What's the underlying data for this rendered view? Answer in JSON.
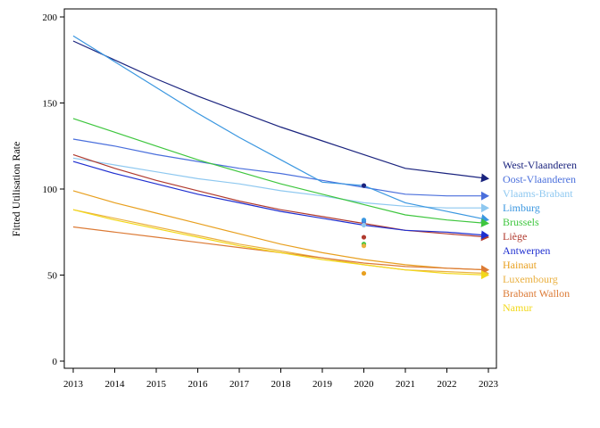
{
  "chart_data": {
    "type": "line",
    "title": "",
    "xlabel": "",
    "ylabel": "Fitted Utilisation Rate",
    "xlim": [
      2013,
      2023
    ],
    "ylim": [
      0,
      200
    ],
    "x_ticks": [
      "2013",
      "2014",
      "2015",
      "2016",
      "2017",
      "2018",
      "2019",
      "2020",
      "2021",
      "2022",
      "2023"
    ],
    "y_ticks": [
      "0",
      "50",
      "100",
      "150",
      "200"
    ],
    "grid": false,
    "legend_placement": "right",
    "series": [
      {
        "name": "West-Vlaanderen",
        "color": "#1a237e",
        "x": [
          2013,
          2014,
          2015,
          2016,
          2017,
          2018,
          2019,
          2020,
          2021,
          2022,
          2023
        ],
        "values": [
          186,
          175,
          164,
          154,
          145,
          136,
          128,
          120,
          112,
          109,
          106
        ],
        "point_2020": 102
      },
      {
        "name": "Oost-Vlaanderen",
        "color": "#4a6fdc",
        "x": [
          2013,
          2014,
          2015,
          2016,
          2017,
          2018,
          2019,
          2020,
          2021,
          2022,
          2023
        ],
        "values": [
          129,
          125,
          120,
          116,
          112,
          109,
          105,
          101,
          97,
          96,
          96
        ],
        "point_2020": 81
      },
      {
        "name": "Vlaams-Brabant",
        "color": "#8ec8f0",
        "x": [
          2013,
          2014,
          2015,
          2016,
          2017,
          2018,
          2019,
          2020,
          2021,
          2022,
          2023
        ],
        "values": [
          118,
          114,
          110,
          106,
          103,
          99,
          96,
          92,
          90,
          89,
          89
        ],
        "point_2020": 79
      },
      {
        "name": "Limburg",
        "color": "#3b97e0",
        "x": [
          2013,
          2014,
          2015,
          2016,
          2017,
          2018,
          2019,
          2020,
          2021,
          2022,
          2023
        ],
        "values": [
          189,
          174,
          159,
          144,
          130,
          117,
          104,
          102,
          92,
          87,
          82
        ],
        "point_2020": 82
      },
      {
        "name": "Brussels",
        "color": "#3ec63e",
        "x": [
          2013,
          2014,
          2015,
          2016,
          2017,
          2018,
          2019,
          2020,
          2021,
          2022,
          2023
        ],
        "values": [
          141,
          133,
          125,
          117,
          110,
          103,
          97,
          91,
          85,
          82,
          80
        ],
        "point_2020": 68
      },
      {
        "name": "Liège",
        "color": "#b03a2e",
        "x": [
          2013,
          2014,
          2015,
          2016,
          2017,
          2018,
          2019,
          2020,
          2021,
          2022,
          2023
        ],
        "values": [
          120,
          112,
          105,
          99,
          93,
          88,
          84,
          80,
          76,
          74,
          72
        ],
        "point_2020": 72
      },
      {
        "name": "Antwerpen",
        "color": "#1f2fd0",
        "x": [
          2013,
          2014,
          2015,
          2016,
          2017,
          2018,
          2019,
          2020,
          2021,
          2022,
          2023
        ],
        "values": [
          116,
          109,
          103,
          97,
          92,
          87,
          83,
          79,
          76,
          75,
          73
        ]
      },
      {
        "name": "Hainaut",
        "color": "#e8a020",
        "x": [
          2013,
          2014,
          2015,
          2016,
          2017,
          2018,
          2019,
          2020,
          2021,
          2022,
          2023
        ],
        "values": [
          99,
          92,
          86,
          80,
          74,
          68,
          63,
          59,
          56,
          54,
          53
        ],
        "point_2020": 51
      },
      {
        "name": "Luxembourg",
        "color": "#eab040",
        "x": [
          2013,
          2014,
          2015,
          2016,
          2017,
          2018,
          2019,
          2020,
          2021,
          2022,
          2023
        ],
        "values": [
          88,
          83,
          78,
          73,
          68,
          64,
          60,
          56,
          53,
          52,
          51
        ],
        "point_2020": 67
      },
      {
        "name": "Brabant Wallon",
        "color": "#dc7a35",
        "x": [
          2013,
          2014,
          2015,
          2016,
          2017,
          2018,
          2019,
          2020,
          2021,
          2022,
          2023
        ],
        "values": [
          78,
          75,
          72,
          69,
          66,
          63,
          60,
          57,
          55,
          54,
          53
        ]
      },
      {
        "name": "Namur",
        "color": "#f2d81a",
        "x": [
          2013,
          2014,
          2015,
          2016,
          2017,
          2018,
          2019,
          2020,
          2021,
          2022,
          2023
        ],
        "values": [
          88,
          82,
          77,
          72,
          67,
          63,
          59,
          56,
          53,
          51,
          50
        ]
      }
    ]
  }
}
